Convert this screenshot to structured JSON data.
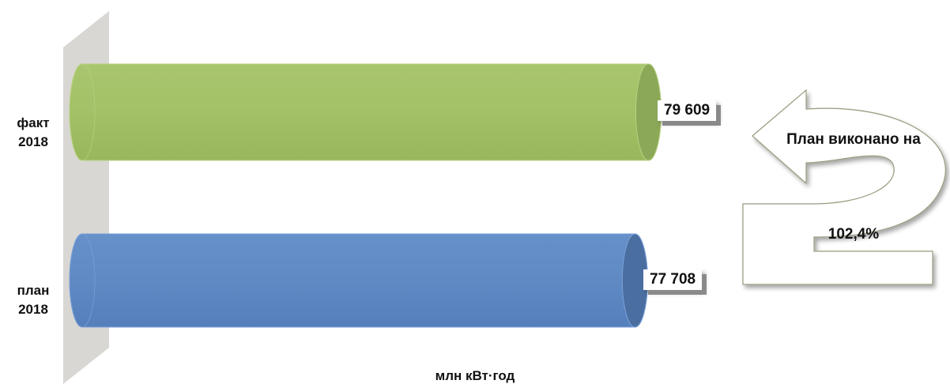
{
  "chart_data": {
    "type": "bar",
    "orientation": "horizontal",
    "categories": [
      "факт\n2018",
      "план\n2018"
    ],
    "values": [
      79609,
      77708
    ],
    "value_labels": [
      "79 609",
      "77 708"
    ],
    "unit_label": "млн кВт·год",
    "xlim": [
      0,
      100000
    ],
    "grid": false,
    "legend": "none",
    "colors": [
      "#9fbf63",
      "#5b86c2"
    ]
  },
  "callout": {
    "title": "План виконано на",
    "value": "102,4%"
  }
}
